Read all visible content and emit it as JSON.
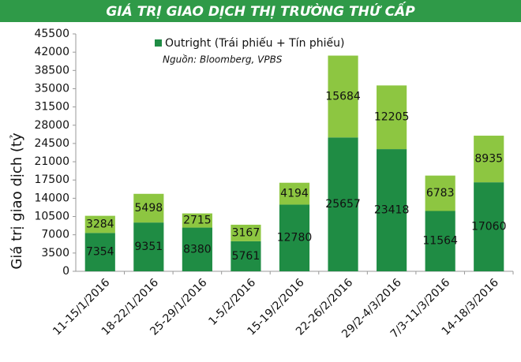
{
  "chart_data": {
    "type": "stacked_bar",
    "title": "GIÁ TRỊ GIAO DỊCH THỊ TRƯỜNG THỨ CẤP",
    "y_label": "Giá trị giao dịch (tỷ",
    "source": "Nguồn: Bloomberg, VPBS",
    "categories": [
      "11-15/1/2016",
      "18-22/1/2016",
      "25-29/1/2016",
      "1-5/2/2016",
      "15-19/2/2016",
      "22-26/2/2016",
      "29/2-4/3/2016",
      "7/3-11/3/2016",
      "14-18/3/2016"
    ],
    "series": [
      {
        "name": "Outright (Trái phiếu + Tín phiếu)",
        "color": "#1f8c44",
        "values": [
          7354,
          9351,
          8380,
          5761,
          12780,
          25657,
          23418,
          11564,
          17060
        ]
      },
      {
        "color": "#8dc641",
        "values": [
          3284,
          5498,
          2715,
          3167,
          4194,
          15684,
          12205,
          6783,
          8935
        ]
      }
    ],
    "ylim": [
      0,
      45500
    ],
    "yticks": [
      0,
      3500,
      7000,
      10500,
      14000,
      17500,
      21000,
      24500,
      28000,
      31500,
      35000,
      38500,
      42000,
      45500
    ],
    "grid": false
  }
}
